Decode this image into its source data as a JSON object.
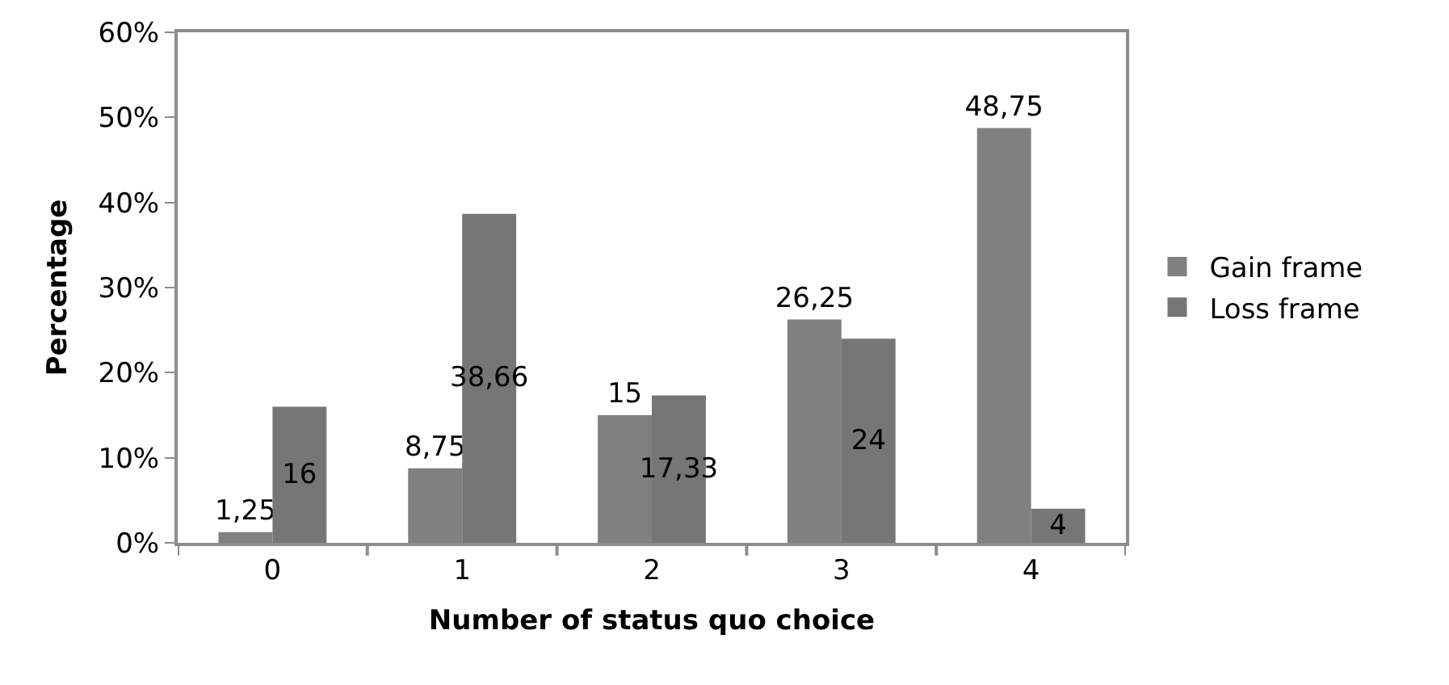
{
  "chart_data": {
    "type": "bar",
    "xlabel": "Number of status quo choice",
    "ylabel": "Percentage",
    "categories": [
      "0",
      "1",
      "2",
      "3",
      "4"
    ],
    "series": [
      {
        "name": "Gain frame",
        "color": "#808080",
        "values": [
          1.25,
          8.75,
          15,
          26.25,
          48.75
        ],
        "value_labels": [
          "1,25",
          "8,75",
          "15",
          "26,25",
          "48,75"
        ]
      },
      {
        "name": "Loss frame",
        "color": "#767676",
        "values": [
          16,
          38.66,
          17.33,
          24,
          4
        ],
        "value_labels": [
          "16",
          "38,66",
          "17,33",
          "24",
          "4"
        ]
      }
    ],
    "ylim": [
      0,
      60
    ],
    "yticks": [
      {
        "value": 0,
        "label": "0%"
      },
      {
        "value": 10,
        "label": "10%"
      },
      {
        "value": 20,
        "label": "20%"
      },
      {
        "value": 30,
        "label": "30%"
      },
      {
        "value": 40,
        "label": "40%"
      },
      {
        "value": 50,
        "label": "50%"
      },
      {
        "value": 60,
        "label": "60%"
      }
    ],
    "legend": "right"
  }
}
